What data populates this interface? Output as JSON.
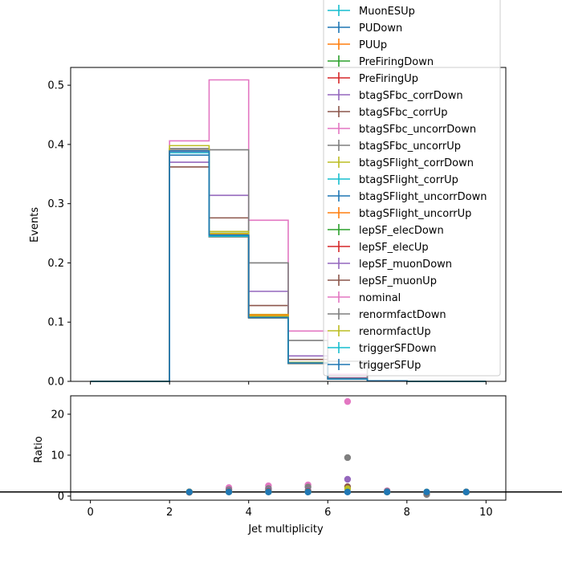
{
  "chart_data": [
    {
      "type": "line",
      "drawstyle": "steps",
      "xlabel": "",
      "ylabel": "Events",
      "xlim": [
        -0.5,
        10.5
      ],
      "ylim": [
        0,
        0.53
      ],
      "x_ticks": [
        0,
        2,
        4,
        6,
        8,
        10
      ],
      "y_ticks": [
        0.0,
        0.1,
        0.2,
        0.3,
        0.4,
        0.5
      ],
      "y_tick_labels": [
        "0.0",
        "0.1",
        "0.2",
        "0.3",
        "0.4",
        "0.5"
      ],
      "bin_edges": [
        0,
        1,
        2,
        3,
        4,
        5,
        6,
        7,
        8,
        9,
        10
      ],
      "legend_position": "top-right",
      "series": [
        {
          "name": "MuonESUp",
          "color": "#17becf",
          "values": [
            0,
            0,
            0.388,
            0.246,
            0.108,
            0.031,
            0.004,
            0.001,
            0,
            0
          ]
        },
        {
          "name": "PUDown",
          "color": "#1f77b4",
          "values": [
            0,
            0,
            0.382,
            0.247,
            0.109,
            0.031,
            0.004,
            0.001,
            0,
            0
          ]
        },
        {
          "name": "PUUp",
          "color": "#ff7f0e",
          "values": [
            0,
            0,
            0.392,
            0.244,
            0.107,
            0.03,
            0.004,
            0.001,
            0,
            0
          ]
        },
        {
          "name": "PreFiringDown",
          "color": "#2ca02c",
          "values": [
            0,
            0,
            0.388,
            0.246,
            0.108,
            0.031,
            0.004,
            0.001,
            0,
            0
          ]
        },
        {
          "name": "PreFiringUp",
          "color": "#d62728",
          "values": [
            0,
            0,
            0.388,
            0.246,
            0.108,
            0.031,
            0.004,
            0.001,
            0,
            0
          ]
        },
        {
          "name": "btagSFbc_corrDown",
          "color": "#9467bd",
          "values": [
            0,
            0,
            0.37,
            0.314,
            0.152,
            0.043,
            0.006,
            0.001,
            0,
            0
          ]
        },
        {
          "name": "btagSFbc_corrUp",
          "color": "#8c564b",
          "values": [
            0,
            0,
            0.362,
            0.276,
            0.128,
            0.037,
            0.005,
            0.001,
            0,
            0
          ]
        },
        {
          "name": "btagSFbc_uncorrDown",
          "color": "#e377c2",
          "values": [
            0,
            0,
            0.406,
            0.509,
            0.272,
            0.085,
            0.012,
            0.001,
            0,
            0
          ]
        },
        {
          "name": "btagSFbc_uncorrUp",
          "color": "#7f7f7f",
          "values": [
            0,
            0,
            0.393,
            0.391,
            0.2,
            0.069,
            0.034,
            0.001,
            0,
            0
          ]
        },
        {
          "name": "btagSFlight_corrDown",
          "color": "#bcbd22",
          "values": [
            0,
            0,
            0.389,
            0.253,
            0.113,
            0.032,
            0.004,
            0.001,
            0,
            0
          ]
        },
        {
          "name": "btagSFlight_corrUp",
          "color": "#17becf",
          "values": [
            0,
            0,
            0.387,
            0.244,
            0.107,
            0.03,
            0.004,
            0.001,
            0,
            0
          ]
        },
        {
          "name": "btagSFlight_uncorrDown",
          "color": "#1f77b4",
          "values": [
            0,
            0,
            0.389,
            0.25,
            0.111,
            0.032,
            0.004,
            0.001,
            0,
            0
          ]
        },
        {
          "name": "btagSFlight_uncorrUp",
          "color": "#ff7f0e",
          "values": [
            0,
            0,
            0.388,
            0.248,
            0.112,
            0.031,
            0.004,
            0.001,
            0,
            0
          ]
        },
        {
          "name": "lepSF_elecDown",
          "color": "#2ca02c",
          "values": [
            0,
            0,
            0.389,
            0.246,
            0.108,
            0.031,
            0.004,
            0.001,
            0,
            0
          ]
        },
        {
          "name": "lepSF_elecUp",
          "color": "#d62728",
          "values": [
            0,
            0,
            0.387,
            0.246,
            0.108,
            0.031,
            0.004,
            0.001,
            0,
            0
          ]
        },
        {
          "name": "lepSF_muonDown",
          "color": "#9467bd",
          "values": [
            0,
            0,
            0.389,
            0.246,
            0.108,
            0.031,
            0.004,
            0.001,
            0,
            0
          ]
        },
        {
          "name": "lepSF_muonUp",
          "color": "#8c564b",
          "values": [
            0,
            0,
            0.387,
            0.246,
            0.108,
            0.031,
            0.004,
            0.001,
            0,
            0
          ]
        },
        {
          "name": "nominal",
          "color": "#e377c2",
          "values": [
            0,
            0,
            0.388,
            0.246,
            0.108,
            0.031,
            0.004,
            0.001,
            0,
            0
          ]
        },
        {
          "name": "renormfactDown",
          "color": "#7f7f7f",
          "values": [
            0,
            0,
            0.392,
            0.244,
            0.107,
            0.03,
            0.004,
            0.001,
            0,
            0
          ]
        },
        {
          "name": "renormfactUp",
          "color": "#bcbd22",
          "values": [
            0,
            0,
            0.398,
            0.25,
            0.11,
            0.032,
            0.004,
            0.001,
            0,
            0
          ]
        },
        {
          "name": "triggerSFDown",
          "color": "#17becf",
          "values": [
            0,
            0,
            0.386,
            0.245,
            0.108,
            0.031,
            0.004,
            0.001,
            0,
            0
          ]
        },
        {
          "name": "triggerSFUp",
          "color": "#1f77b4",
          "values": [
            0,
            0,
            0.389,
            0.247,
            0.108,
            0.031,
            0.004,
            0.001,
            0,
            0
          ]
        }
      ]
    },
    {
      "type": "scatter",
      "xlabel": "Jet multiplicity",
      "ylabel": "Ratio",
      "xlim": [
        -0.5,
        10.5
      ],
      "ylim": [
        -1,
        24.5
      ],
      "x_ticks": [
        0,
        2,
        4,
        6,
        8,
        10
      ],
      "x_tick_labels": [
        "0",
        "2",
        "4",
        "6",
        "8",
        "10"
      ],
      "y_ticks": [
        0,
        10,
        20
      ],
      "y_tick_labels": [
        "0",
        "10",
        "20"
      ],
      "reference_line": 1,
      "reference_color": "#000000",
      "x": [
        2.5,
        3.5,
        4.5,
        5.5,
        6.5,
        7.5,
        8.5,
        9.5
      ],
      "series": [
        {
          "name": "btagSFbc_uncorrDown",
          "color": "#e377c2",
          "values": [
            1.05,
            2.07,
            2.52,
            2.74,
            23.1,
            1.3,
            0.9,
            1.0
          ]
        },
        {
          "name": "btagSFbc_uncorrUp",
          "color": "#7f7f7f",
          "values": [
            1.01,
            1.59,
            1.85,
            2.23,
            9.4,
            1.2,
            0.4,
            1.0
          ]
        },
        {
          "name": "btagSFbc_corrDown",
          "color": "#9467bd",
          "values": [
            0.95,
            1.28,
            1.41,
            1.39,
            4.1,
            1.1,
            0.9,
            1.0
          ]
        },
        {
          "name": "btagSFbc_corrUp",
          "color": "#8c564b",
          "values": [
            0.93,
            1.12,
            1.19,
            1.19,
            2.3,
            1.0,
            0.9,
            1.0
          ]
        },
        {
          "name": "renormfactUp",
          "color": "#bcbd22",
          "values": [
            1.03,
            1.02,
            1.02,
            1.03,
            1.8,
            1.0,
            1.0,
            1.0
          ]
        },
        {
          "name": "triggerSFUp",
          "color": "#1f77b4",
          "values": [
            1.0,
            1.0,
            1.0,
            1.0,
            1.0,
            1.0,
            1.0,
            1.0
          ]
        }
      ]
    }
  ]
}
